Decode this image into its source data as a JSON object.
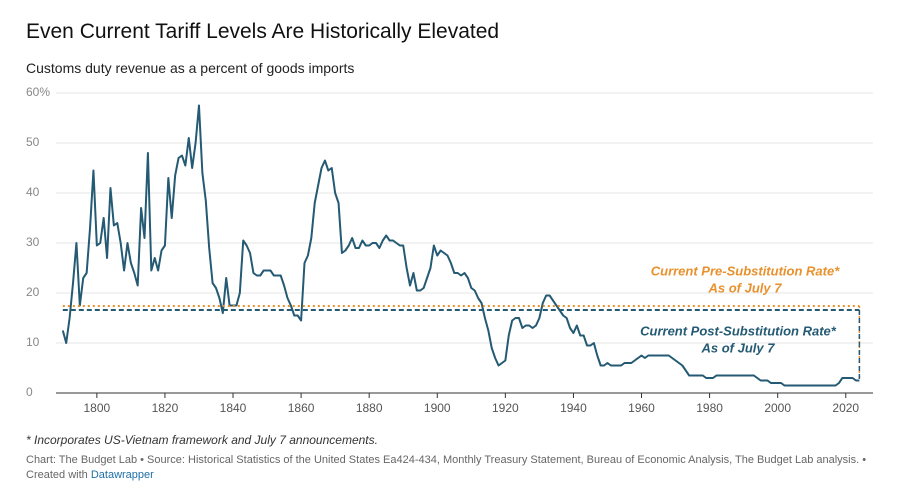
{
  "chart_data": {
    "type": "line",
    "title": "Even Current Tariff Levels Are Historically Elevated",
    "subtitle": "Customs duty revenue as a percent of goods imports",
    "note": "* Incorporates US-Vietnam framework and July 7 announcements.",
    "source": "Chart: The Budget Lab • Source: Historical Statistics of the United States Ea424-434, Monthly Treasury Statement, Bureau of Economic Analysis, The Budget Lab analysis. •",
    "created_with": "Created with",
    "created_with_link": "Datawrapper",
    "xlim": [
      1788,
      2028
    ],
    "xticks": [
      1800,
      1820,
      1840,
      1860,
      1880,
      1900,
      1920,
      1940,
      1960,
      1980,
      2000,
      2020
    ],
    "ylim": [
      0,
      60
    ],
    "yticks": [
      0,
      10,
      20,
      30,
      40,
      50,
      {
        "value": 60,
        "label": "60%"
      }
    ],
    "grid": true,
    "series": [
      {
        "color": "#245a73",
        "x": [
          1790,
          1791,
          1792,
          1793,
          1794,
          1795,
          1796,
          1797,
          1798,
          1799,
          1800,
          1801,
          1802,
          1803,
          1804,
          1805,
          1806,
          1807,
          1808,
          1809,
          1810,
          1811,
          1812,
          1813,
          1814,
          1815,
          1816,
          1817,
          1818,
          1819,
          1820,
          1821,
          1822,
          1823,
          1824,
          1825,
          1826,
          1827,
          1828,
          1829,
          1830,
          1831,
          1832,
          1833,
          1834,
          1835,
          1836,
          1837,
          1838,
          1839,
          1840,
          1841,
          1842,
          1843,
          1844,
          1845,
          1846,
          1847,
          1848,
          1849,
          1850,
          1851,
          1852,
          1853,
          1854,
          1855,
          1856,
          1857,
          1858,
          1859,
          1860,
          1861,
          1862,
          1863,
          1864,
          1865,
          1866,
          1867,
          1868,
          1869,
          1870,
          1871,
          1872,
          1873,
          1874,
          1875,
          1876,
          1877,
          1878,
          1879,
          1880,
          1881,
          1882,
          1883,
          1884,
          1885,
          1886,
          1887,
          1888,
          1889,
          1890,
          1891,
          1892,
          1893,
          1894,
          1895,
          1896,
          1897,
          1898,
          1899,
          1900,
          1901,
          1902,
          1903,
          1904,
          1905,
          1906,
          1907,
          1908,
          1909,
          1910,
          1911,
          1912,
          1913,
          1914,
          1915,
          1916,
          1917,
          1918,
          1919,
          1920,
          1921,
          1922,
          1923,
          1924,
          1925,
          1926,
          1927,
          1928,
          1929,
          1930,
          1931,
          1932,
          1933,
          1934,
          1935,
          1936,
          1937,
          1938,
          1939,
          1940,
          1941,
          1942,
          1943,
          1944,
          1945,
          1946,
          1947,
          1948,
          1949,
          1950,
          1951,
          1952,
          1953,
          1954,
          1955,
          1956,
          1957,
          1958,
          1959,
          1960,
          1961,
          1962,
          1963,
          1964,
          1965,
          1966,
          1967,
          1968,
          1969,
          1970,
          1971,
          1972,
          1973,
          1974,
          1975,
          1976,
          1977,
          1978,
          1979,
          1980,
          1981,
          1982,
          1983,
          1984,
          1985,
          1986,
          1987,
          1988,
          1989,
          1990,
          1991,
          1992,
          1993,
          1994,
          1995,
          1996,
          1997,
          1998,
          1999,
          2000,
          2001,
          2002,
          2003,
          2004,
          2005,
          2006,
          2007,
          2008,
          2009,
          2010,
          2011,
          2012,
          2013,
          2014,
          2015,
          2016,
          2017,
          2018,
          2019,
          2020,
          2021,
          2022,
          2023,
          2024
        ],
        "values": [
          12.5,
          10,
          15,
          22,
          30,
          17.5,
          23,
          24,
          33,
          44.5,
          29.5,
          30,
          35,
          27,
          41,
          33.5,
          34,
          30,
          24.5,
          30,
          26,
          24,
          21.5,
          37,
          31,
          48,
          24.5,
          27,
          24.5,
          28.5,
          29.5,
          43,
          35,
          43.5,
          47,
          47.5,
          45.5,
          51,
          45,
          50,
          57.5,
          44,
          38.5,
          29,
          22,
          21,
          19,
          16,
          23,
          17.5,
          17.5,
          17.5,
          20,
          30.5,
          29.5,
          28,
          24,
          23.5,
          23.5,
          24.5,
          24.5,
          24.5,
          23.5,
          23.5,
          23.5,
          21.5,
          19,
          17.5,
          15.5,
          15.5,
          14.5,
          26,
          27.5,
          31,
          38,
          41.5,
          45,
          46.5,
          44.5,
          45,
          40,
          38,
          28,
          28.5,
          29.5,
          31,
          29,
          29,
          30.5,
          29.5,
          29.5,
          30,
          30,
          29,
          30.5,
          31.5,
          30.5,
          30.5,
          30,
          29.5,
          29.5,
          25,
          21.5,
          24,
          20.5,
          20.5,
          21,
          23,
          25,
          29.5,
          27.5,
          28.5,
          28,
          27.5,
          26,
          24,
          24,
          23.5,
          24,
          23,
          21,
          20.5,
          19,
          18,
          15,
          12.5,
          9,
          7,
          5.5,
          6,
          6.5,
          11.5,
          14.5,
          15,
          15,
          13,
          13.5,
          13.5,
          13,
          13.5,
          15,
          18,
          19.5,
          19.5,
          18.5,
          17.5,
          16.5,
          15.5,
          15,
          13,
          12,
          13.5,
          11.5,
          11.5,
          9.5,
          9.5,
          10,
          7.5,
          5.5,
          5.5,
          6,
          5.5,
          5.5,
          5.5,
          5.5,
          6,
          6,
          6,
          6.5,
          7,
          7.5,
          7,
          7.5,
          7.5,
          7.5,
          7.5,
          7.5,
          7.5,
          7.5,
          7,
          6.5,
          6,
          5.5,
          4.5,
          3.5,
          3.5,
          3.5,
          3.5,
          3.5,
          3,
          3,
          3,
          3.5,
          3.5,
          3.5,
          3.5,
          3.5,
          3.5,
          3.5,
          3.5,
          3.5,
          3.5,
          3.5,
          3.5,
          3,
          2.5,
          2.5,
          2.5,
          2,
          2,
          2,
          2,
          1.5,
          1.5,
          1.5,
          1.5,
          1.5,
          1.5,
          1.5,
          1.5,
          1.5,
          1.5,
          1.5,
          1.5,
          1.5,
          1.5,
          1.5,
          1.5,
          2,
          3,
          3,
          3,
          3,
          2.5,
          2.5
        ]
      }
    ],
    "reference_lines": [
      {
        "value": 17.4,
        "color": "#e8912d",
        "style": "dotted",
        "label_lines": [
          "Current Pre-Substitution Rate*",
          "As of July 7"
        ]
      },
      {
        "value": 16.6,
        "color": "#245a73",
        "style": "dashed",
        "label_lines": [
          "Current Post-Substitution Rate*",
          "As of July 7"
        ]
      }
    ]
  }
}
